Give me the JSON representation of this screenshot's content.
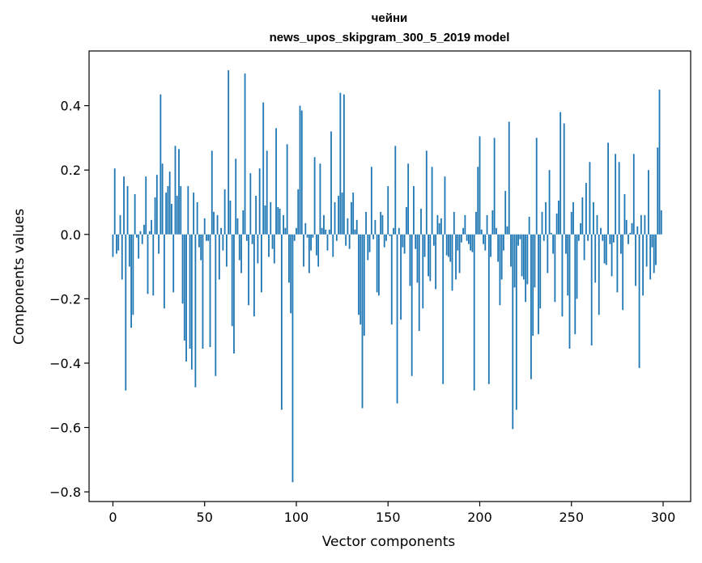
{
  "chart_data": {
    "type": "bar",
    "title": [
      "чейни",
      "news_upos_skipgram_300_5_2019 model"
    ],
    "xlabel": "Vector components",
    "ylabel": "Components values",
    "xlim": [
      -13,
      315
    ],
    "ylim": [
      -0.83,
      0.57
    ],
    "xticks": [
      0,
      50,
      100,
      150,
      200,
      250,
      300
    ],
    "yticks": [
      0.4,
      0.2,
      0.0,
      -0.2,
      -0.4,
      -0.6,
      -0.8
    ],
    "ytick_labels": [
      "0.4",
      "0.2",
      "0.0",
      "−0.2",
      "−0.4",
      "−0.6",
      "−0.8"
    ],
    "bar_color": "#1f77b4",
    "grid": false,
    "legend": false,
    "values": [
      -0.07,
      0.205,
      -0.06,
      -0.05,
      0.06,
      -0.14,
      0.18,
      -0.485,
      0.15,
      -0.1,
      -0.29,
      -0.25,
      0.125,
      -0.01,
      -0.075,
      0.01,
      -0.03,
      0.03,
      0.18,
      -0.185,
      0.01,
      0.045,
      -0.19,
      0.115,
      0.185,
      -0.06,
      0.435,
      0.22,
      -0.23,
      0.13,
      0.15,
      0.195,
      0.095,
      -0.18,
      0.275,
      0.12,
      0.265,
      0.15,
      -0.215,
      -0.33,
      -0.395,
      0.15,
      -0.355,
      -0.42,
      0.13,
      -0.475,
      0.1,
      -0.04,
      -0.08,
      -0.355,
      0.05,
      -0.02,
      -0.02,
      -0.35,
      0.26,
      0.07,
      -0.44,
      0.06,
      -0.14,
      0.02,
      -0.05,
      0.14,
      -0.1,
      0.51,
      0.105,
      -0.285,
      -0.37,
      0.235,
      0.05,
      -0.08,
      -0.12,
      0.075,
      0.5,
      -0.02,
      -0.22,
      0.19,
      -0.03,
      -0.255,
      0.12,
      -0.09,
      0.205,
      -0.18,
      0.41,
      0.09,
      0.26,
      -0.07,
      0.1,
      -0.045,
      -0.09,
      0.33,
      0.085,
      0.08,
      -0.545,
      0.06,
      0.02,
      0.28,
      -0.15,
      -0.245,
      -0.77,
      -0.02,
      0.02,
      0.14,
      0.4,
      0.385,
      -0.1,
      0.035,
      -0.01,
      -0.12,
      -0.05,
      -0.01,
      0.24,
      -0.065,
      -0.1,
      0.22,
      0.02,
      0.06,
      0.015,
      -0.05,
      0.015,
      0.32,
      -0.07,
      0.1,
      -0.02,
      0.12,
      0.44,
      0.13,
      0.435,
      -0.035,
      0.05,
      -0.045,
      0.1,
      0.13,
      0.015,
      0.045,
      -0.25,
      -0.28,
      -0.54,
      -0.315,
      0.07,
      -0.08,
      -0.055,
      0.21,
      -0.015,
      0.045,
      -0.18,
      -0.19,
      0.07,
      0.06,
      -0.04,
      -0.02,
      0.15,
      -0.005,
      -0.28,
      0.02,
      0.275,
      -0.525,
      0.02,
      -0.265,
      -0.04,
      -0.06,
      0.085,
      0.22,
      -0.16,
      -0.44,
      0.15,
      -0.045,
      -0.15,
      -0.3,
      0.08,
      -0.23,
      -0.07,
      0.26,
      -0.13,
      -0.145,
      0.21,
      -0.035,
      -0.17,
      0.06,
      0.035,
      0.05,
      -0.465,
      0.18,
      -0.065,
      -0.07,
      -0.085,
      -0.175,
      0.07,
      -0.14,
      -0.05,
      -0.12,
      -0.025,
      0.02,
      0.06,
      -0.02,
      -0.03,
      -0.05,
      -0.055,
      -0.485,
      0.07,
      0.21,
      0.305,
      0.015,
      -0.03,
      -0.05,
      0.06,
      -0.465,
      -0.07,
      0.075,
      0.3,
      0.02,
      -0.085,
      -0.22,
      -0.14,
      -0.05,
      0.135,
      0.025,
      0.35,
      -0.1,
      -0.605,
      -0.165,
      -0.545,
      -0.035,
      -0.015,
      -0.13,
      -0.14,
      -0.21,
      -0.155,
      0.055,
      -0.45,
      -0.315,
      -0.165,
      0.3,
      -0.31,
      -0.23,
      0.07,
      -0.02,
      0.1,
      -0.12,
      0.2,
      0.005,
      -0.06,
      -0.21,
      0.065,
      0.105,
      0.38,
      -0.255,
      0.345,
      -0.06,
      -0.19,
      -0.355,
      0.07,
      0.1,
      -0.31,
      -0.2,
      -0.02,
      0.035,
      0.115,
      -0.08,
      0.16,
      -0.02,
      0.225,
      -0.345,
      0.1,
      -0.15,
      0.06,
      -0.25,
      0.02,
      -0.02,
      -0.09,
      -0.095,
      0.285,
      -0.03,
      -0.13,
      -0.025,
      0.25,
      -0.18,
      0.225,
      -0.06,
      -0.235,
      0.125,
      0.045,
      -0.03,
      0.005,
      0.035,
      0.25,
      -0.16,
      0.025,
      -0.415,
      0.06,
      -0.19,
      0.06,
      -0.1,
      0.2,
      -0.14,
      -0.04,
      -0.12,
      -0.095,
      0.27,
      0.45,
      0.075
    ]
  }
}
